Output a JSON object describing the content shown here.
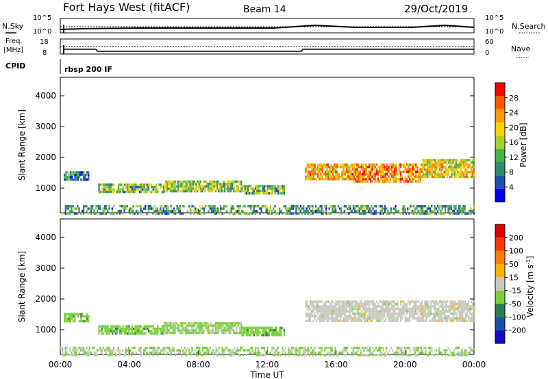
{
  "header": {
    "station": "Fort Hays West (fitACF)",
    "beam": "Beam 14",
    "date": "29/Oct/2019"
  },
  "status_panels": {
    "nsky": {
      "label": "N.Sky",
      "ticks": [
        "10^5",
        "10^0"
      ]
    },
    "nsearch": {
      "label": "N.Search",
      "ticks": [
        "10^5",
        "10^0"
      ]
    },
    "freq": {
      "label_line1": "Freq.",
      "label_line2": "[MHz]",
      "ticks": [
        "18",
        "8"
      ]
    },
    "nave": {
      "label": "Nave",
      "ticks": [
        "60",
        "0"
      ]
    },
    "cpid": {
      "label": "CPID",
      "program": "rbsp 200 IF"
    }
  },
  "x_axis": {
    "label": "Time UT",
    "ticks": [
      "00:00",
      "04:00",
      "08:00",
      "12:00",
      "16:00",
      "20:00",
      "00:00"
    ]
  },
  "colors": {
    "power": [
      "#0000ff",
      "#1f4fa8",
      "#2f8a6e",
      "#47b24a",
      "#a8cf2e",
      "#ffd200",
      "#ff9a00",
      "#ff5a00",
      "#ff0000"
    ],
    "velocity": [
      "#1010c0",
      "#1b4ea6",
      "#2e7d4f",
      "#7fcf3c",
      "#c9c9c0",
      "#ffb000",
      "#ff7a00",
      "#ff3a00",
      "#e00000"
    ]
  },
  "chart_data": [
    {
      "type": "heatmap",
      "name": "power",
      "ylabel": "Slant Range [km]",
      "ylim": [
        200,
        4600
      ],
      "yticks": [
        "4000",
        "3000",
        "2000",
        "1000"
      ],
      "xlim_hours": [
        0,
        24
      ],
      "colorbar": {
        "label": "Power [dB]",
        "ticks": [
          "28",
          "24",
          "20",
          "16",
          "12",
          "8",
          "4"
        ],
        "range": [
          0,
          30
        ]
      },
      "regions": [
        {
          "t0": 0.2,
          "t1": 1.6,
          "r0": 1250,
          "r1": 1550,
          "value": 8
        },
        {
          "t0": 2.2,
          "t1": 6.0,
          "r0": 850,
          "r1": 1150,
          "value": 12
        },
        {
          "t0": 6.0,
          "t1": 10.5,
          "r0": 900,
          "r1": 1250,
          "value": 14
        },
        {
          "t0": 10.5,
          "t1": 13.0,
          "r0": 820,
          "r1": 1100,
          "value": 12
        },
        {
          "t0": 14.2,
          "t1": 17.0,
          "r0": 1300,
          "r1": 1800,
          "value": 20
        },
        {
          "t0": 17.0,
          "t1": 21.0,
          "r0": 1200,
          "r1": 1800,
          "value": 22
        },
        {
          "t0": 21.0,
          "t1": 24.0,
          "r0": 1400,
          "r1": 1950,
          "value": 18
        },
        {
          "t0": 0.0,
          "t1": 24.0,
          "r0": 200,
          "r1": 450,
          "value": 10
        }
      ]
    },
    {
      "type": "heatmap",
      "name": "velocity",
      "ylabel": "Slant Range [km]",
      "ylim": [
        200,
        4600
      ],
      "yticks": [
        "4000",
        "3000",
        "2000",
        "1000"
      ],
      "xlim_hours": [
        0,
        24
      ],
      "colorbar": {
        "label": "Velocity [m s^-1]",
        "ticks": [
          "200",
          "100",
          "50",
          "15",
          "-15",
          "-50",
          "-100",
          "-200"
        ],
        "range": [
          -250,
          250
        ]
      },
      "regions": [
        {
          "t0": 0.2,
          "t1": 1.6,
          "r0": 1250,
          "r1": 1550,
          "value": -60
        },
        {
          "t0": 2.2,
          "t1": 6.0,
          "r0": 850,
          "r1": 1150,
          "value": -60
        },
        {
          "t0": 6.0,
          "t1": 10.5,
          "r0": 900,
          "r1": 1250,
          "value": -40
        },
        {
          "t0": 10.5,
          "t1": 13.0,
          "r0": 820,
          "r1": 1100,
          "value": -60
        },
        {
          "t0": 14.2,
          "t1": 24.0,
          "r0": 1300,
          "r1": 1950,
          "value": 0
        },
        {
          "t0": 0.0,
          "t1": 24.0,
          "r0": 200,
          "r1": 450,
          "value": -30
        }
      ]
    }
  ]
}
